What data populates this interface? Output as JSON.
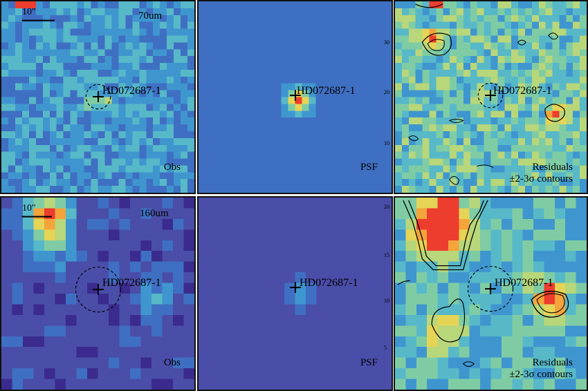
{
  "rows": [
    {
      "band": "70um",
      "panels": [
        {
          "id": "obs",
          "tag": "Obs",
          "scale": "10\"",
          "band_label": "70um",
          "target": "HD072687-1",
          "colors": {
            "bg": "#4a79c2"
          }
        },
        {
          "id": "psf",
          "tag": "PSF",
          "target": "HD072687-1",
          "colors": {
            "bg": "#3d66bf"
          }
        },
        {
          "id": "res",
          "tag": "Residuals",
          "tag2": "±2-3σ contours",
          "target": "HD072687-1",
          "colors": {
            "bg": "#7fc9a3"
          }
        }
      ]
    },
    {
      "band": "160um",
      "panels": [
        {
          "id": "obs",
          "tag": "Obs",
          "scale": "10\"",
          "band_label": "160um",
          "target": "HD072687-1",
          "colors": {
            "bg": "#5a3d9c"
          }
        },
        {
          "id": "psf",
          "tag": "PSF",
          "target": "HD072687-1",
          "colors": {
            "bg": "#3d3c9e"
          }
        },
        {
          "id": "res",
          "tag": "Residuals",
          "tag2": "±2-3σ contours",
          "target": "HD072687-1",
          "colors": {
            "bg": "#5aa9c9"
          }
        }
      ]
    }
  ],
  "psf_ticks_top": [
    "30",
    "20",
    "10"
  ],
  "psf_ticks_bottom": [
    "20",
    "15",
    "10",
    "5"
  ],
  "colormap": [
    "#3b2b8e",
    "#4a4ea8",
    "#3f6fc2",
    "#3f96cf",
    "#57b8c8",
    "#7fcca4",
    "#b8d67a",
    "#e5d455",
    "#f4a43a",
    "#ec3d2e"
  ]
}
